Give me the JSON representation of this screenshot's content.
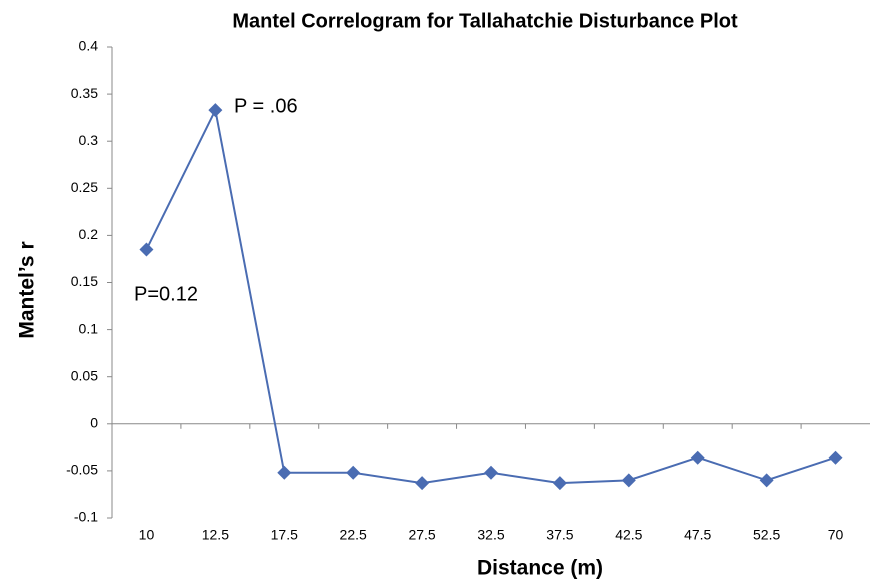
{
  "chart_data": {
    "type": "line",
    "title": "Mantel Correlogram for Tallahatchie Disturbance Plot",
    "x_label": "Distance (m)",
    "y_label": "Mantel’s r",
    "annotations": [
      "P = .06",
      "P=0.12"
    ],
    "categories": [
      "10",
      "12.5",
      "17.5",
      "22.5",
      "27.5",
      "32.5",
      "37.5",
      "42.5",
      "47.5",
      "52.5",
      "70"
    ],
    "series": [
      {
        "name": "Mantel's r",
        "color": "#4a6cb2",
        "values": [
          0.185,
          0.333,
          -0.052,
          -0.052,
          -0.063,
          -0.052,
          -0.063,
          -0.06,
          -0.036,
          -0.06,
          -0.036
        ]
      }
    ],
    "ylim": [
      -0.1,
      0.4
    ],
    "yticks": [
      -0.1,
      -0.05,
      0,
      0.05,
      0.1,
      0.15,
      0.2,
      0.25,
      0.3,
      0.35,
      0.4
    ],
    "grid": false
  }
}
